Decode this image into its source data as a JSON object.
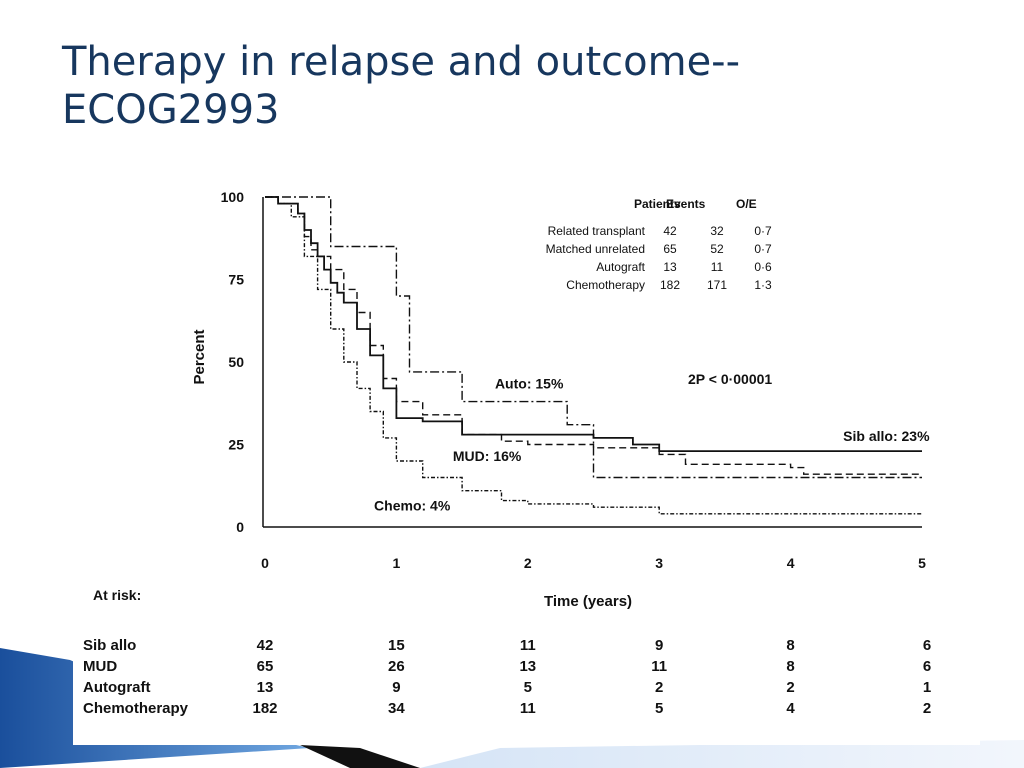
{
  "slide": {
    "title_line1": "Therapy in relapse and outcome--",
    "title_line2": "ECOG2993"
  },
  "colors": {
    "title": "#17375e",
    "curve": "#111111",
    "accent_blue": "#1f5fa8"
  },
  "chart_data": {
    "type": "line",
    "title": "",
    "xlabel": "Time (years)",
    "ylabel": "Percent",
    "xlim": [
      0,
      5
    ],
    "ylim": [
      0,
      100
    ],
    "xticks": [
      "0",
      "1",
      "2",
      "3",
      "4",
      "5"
    ],
    "yticks": [
      "0",
      "25",
      "50",
      "75",
      "100"
    ],
    "legend_table": {
      "headers": [
        "Patients",
        "Events",
        "O/E"
      ],
      "rows": [
        {
          "label": "Related transplant",
          "patients": "42",
          "events": "32",
          "oe": "0·7"
        },
        {
          "label": "Matched unrelated",
          "patients": "65",
          "events": "52",
          "oe": "0·7"
        },
        {
          "label": "Autograft",
          "patients": "13",
          "events": "11",
          "oe": "0·6"
        },
        {
          "label": "Chemotherapy",
          "patients": "182",
          "events": "171",
          "oe": "1·3"
        }
      ]
    },
    "p_value": "2P < 0·00001",
    "series": [
      {
        "name": "Sib allo: 23%",
        "style": "solid",
        "x": [
          0,
          0.1,
          0.25,
          0.3,
          0.35,
          0.4,
          0.45,
          0.5,
          0.55,
          0.6,
          0.7,
          0.8,
          0.9,
          1.0,
          1.2,
          1.5,
          2.0,
          2.5,
          2.8,
          3.0,
          4.0,
          5.0
        ],
        "y": [
          100,
          98,
          95,
          90,
          86,
          82,
          78,
          74,
          71,
          68,
          60,
          52,
          42,
          33,
          32,
          28,
          28,
          27,
          25,
          23,
          23,
          23
        ]
      },
      {
        "name": "MUD: 16%",
        "style": "dashed",
        "x": [
          0,
          0.1,
          0.25,
          0.3,
          0.35,
          0.4,
          0.5,
          0.6,
          0.7,
          0.8,
          0.9,
          1.0,
          1.2,
          1.5,
          1.8,
          2.0,
          2.5,
          3.0,
          3.2,
          4.0,
          4.1,
          5.0
        ],
        "y": [
          100,
          98,
          95,
          88,
          84,
          82,
          78,
          72,
          65,
          55,
          45,
          38,
          34,
          28,
          26,
          25,
          24,
          22,
          19,
          18,
          16,
          16
        ]
      },
      {
        "name": "Auto: 15%",
        "style": "dashdot",
        "x": [
          0,
          0.4,
          0.5,
          0.8,
          1.0,
          1.1,
          1.5,
          2.0,
          2.3,
          2.5,
          3.0,
          5.0
        ],
        "y": [
          100,
          100,
          85,
          85,
          70,
          47,
          38,
          38,
          31,
          15,
          15,
          15
        ]
      },
      {
        "name": "Chemo:  4%",
        "style": "dashdotdense",
        "x": [
          0,
          0.1,
          0.2,
          0.3,
          0.4,
          0.5,
          0.6,
          0.7,
          0.8,
          0.9,
          1.0,
          1.2,
          1.5,
          1.8,
          2.0,
          2.5,
          3.0,
          4.0,
          5.0
        ],
        "y": [
          100,
          98,
          94,
          82,
          72,
          60,
          50,
          42,
          35,
          27,
          20,
          15,
          11,
          8,
          7,
          6,
          4,
          4,
          4
        ]
      }
    ],
    "curve_labels": [
      {
        "series": 0,
        "text": "Sib allo: 23%",
        "x": 4.4,
        "y": 26
      },
      {
        "series": 1,
        "text": "MUD: 16%",
        "x": 1.43,
        "y": 20
      },
      {
        "series": 2,
        "text": "Auto: 15%",
        "x": 1.75,
        "y": 42
      },
      {
        "series": 3,
        "text": "Chemo:  4%",
        "x": 0.83,
        "y": 5
      }
    ],
    "at_risk": {
      "title": "At risk:",
      "times": [
        0,
        1,
        2,
        3,
        4,
        5
      ],
      "rows": [
        {
          "label": "Sib allo",
          "values": [
            "42",
            "15",
            "11",
            "9",
            "8",
            "6"
          ]
        },
        {
          "label": "MUD",
          "values": [
            "65",
            "26",
            "13",
            "11",
            "8",
            "6"
          ]
        },
        {
          "label": "Autograft",
          "values": [
            "13",
            "9",
            "5",
            "2",
            "2",
            "1"
          ]
        },
        {
          "label": "Chemotherapy",
          "values": [
            "182",
            "34",
            "11",
            "5",
            "4",
            "2"
          ]
        }
      ]
    }
  }
}
